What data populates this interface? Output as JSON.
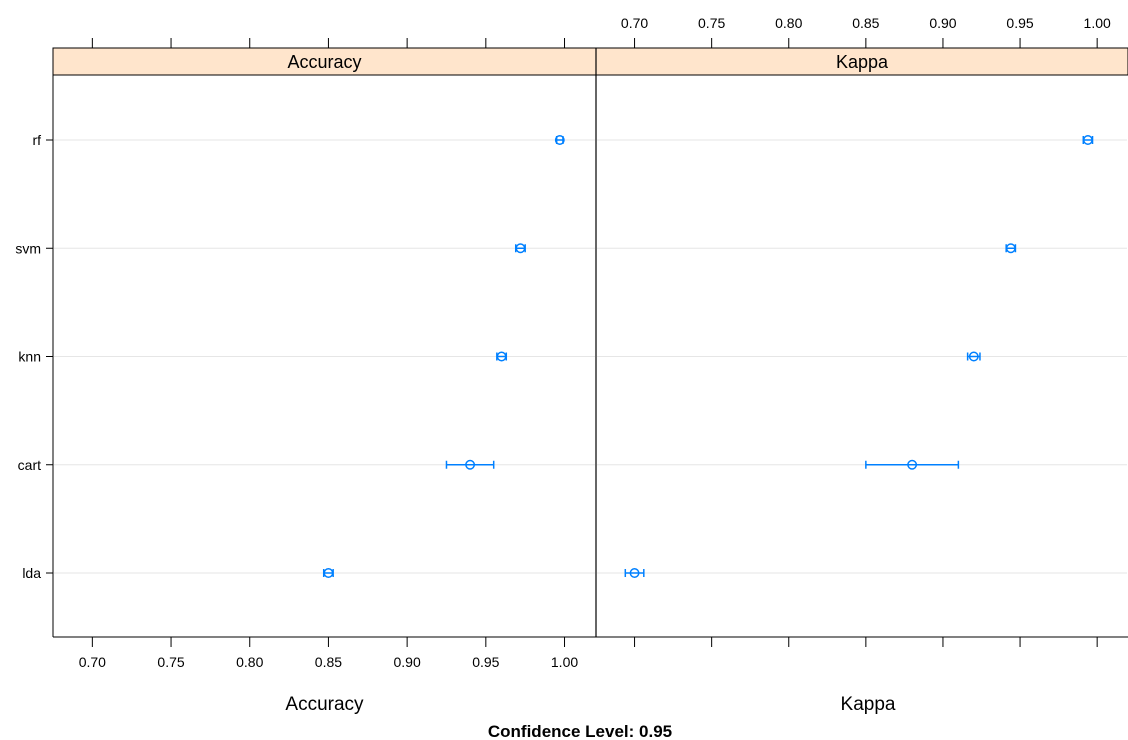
{
  "chart_data": {
    "type": "dot",
    "models": [
      "rf",
      "svm",
      "knn",
      "cart",
      "lda"
    ],
    "panels": [
      {
        "metric": "Accuracy",
        "strip_label": "Accuracy",
        "xlabel": "Accuracy",
        "xlim": [
          0.675,
          1.02
        ],
        "ticks": [
          0.7,
          0.75,
          0.8,
          0.85,
          0.9,
          0.95,
          1.0
        ],
        "tick_labels": [
          "0.70",
          "0.75",
          "0.80",
          "0.85",
          "0.90",
          "0.95",
          "1.00"
        ],
        "tick_labels_side": "bottom",
        "estimates": [
          {
            "model": "rf",
            "value": 0.997,
            "lower": 0.995,
            "upper": 0.999
          },
          {
            "model": "svm",
            "value": 0.972,
            "lower": 0.969,
            "upper": 0.975
          },
          {
            "model": "knn",
            "value": 0.96,
            "lower": 0.957,
            "upper": 0.963
          },
          {
            "model": "cart",
            "value": 0.94,
            "lower": 0.925,
            "upper": 0.955
          },
          {
            "model": "lda",
            "value": 0.85,
            "lower": 0.847,
            "upper": 0.853
          }
        ]
      },
      {
        "metric": "Kappa",
        "strip_label": "Kappa",
        "xlabel": "Kappa",
        "xlim": [
          0.675,
          1.02
        ],
        "ticks": [
          0.7,
          0.75,
          0.8,
          0.85,
          0.9,
          0.95,
          1.0
        ],
        "tick_labels": [
          "0.70",
          "0.75",
          "0.80",
          "0.85",
          "0.90",
          "0.95",
          "1.00"
        ],
        "tick_labels_side": "top",
        "estimates": [
          {
            "model": "rf",
            "value": 0.994,
            "lower": 0.991,
            "upper": 0.997
          },
          {
            "model": "svm",
            "value": 0.944,
            "lower": 0.941,
            "upper": 0.947
          },
          {
            "model": "knn",
            "value": 0.92,
            "lower": 0.916,
            "upper": 0.924
          },
          {
            "model": "cart",
            "value": 0.88,
            "lower": 0.85,
            "upper": 0.91
          },
          {
            "model": "lda",
            "value": 0.7,
            "lower": 0.694,
            "upper": 0.706
          }
        ]
      }
    ],
    "footer_title": "Confidence Level: 0.95",
    "grid": true,
    "legend": "none",
    "colors": {
      "points": "#0080ff",
      "strip_background": "#ffe5cc",
      "gridlines": "#e6e6e6",
      "frame": "#000000"
    }
  }
}
